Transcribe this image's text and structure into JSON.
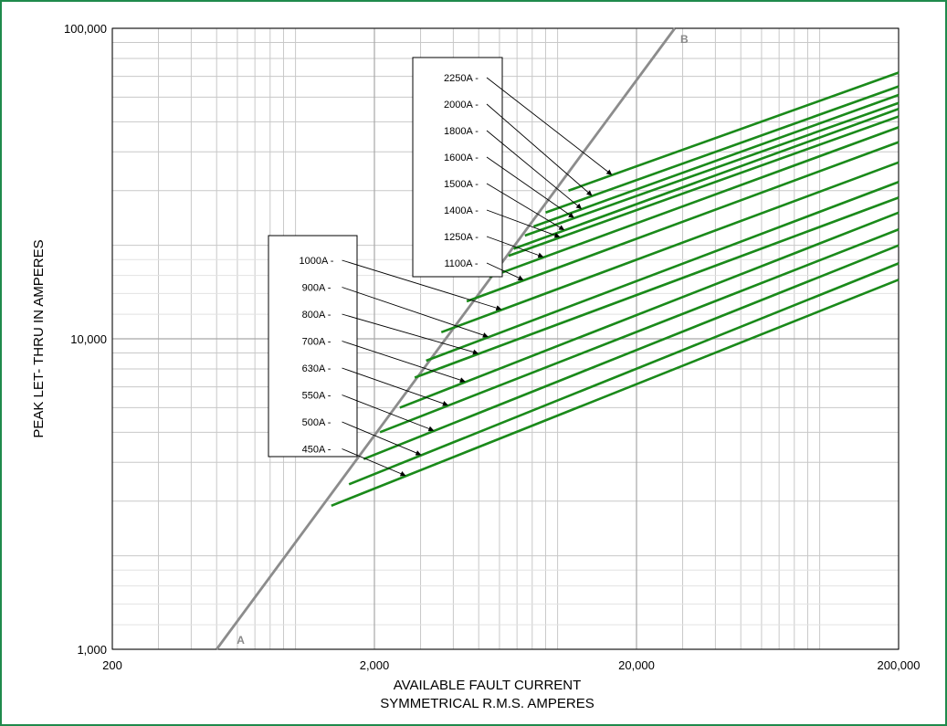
{
  "chart_data": {
    "type": "line",
    "xscale": "log",
    "yscale": "log",
    "xlim": [
      200,
      200000
    ],
    "ylim": [
      1000,
      100000
    ],
    "xlabel": [
      "AVAILABLE FAULT CURRENT",
      "SYMMETRICAL  R.M.S.  AMPERES"
    ],
    "ylabel": "PEAK LET- THRU IN AMPERES",
    "x_ticks": [
      {
        "value": 200,
        "label": "200"
      },
      {
        "value": 2000,
        "label": "2,000"
      },
      {
        "value": 20000,
        "label": "20,000"
      },
      {
        "value": 200000,
        "label": "200,000"
      }
    ],
    "y_ticks": [
      {
        "value": 1000,
        "label": "1,000"
      },
      {
        "value": 10000,
        "label": "10,000"
      },
      {
        "value": 100000,
        "label": "100,000"
      }
    ],
    "grid": true,
    "reference_line": {
      "start_label": "A",
      "end_label": "B",
      "color": "#8c8c8c",
      "points": [
        [
          500,
          1000
        ],
        [
          28000,
          100000
        ]
      ]
    },
    "series_color": "#1a8a1a",
    "series": [
      {
        "name": "450A",
        "points": [
          [
            1370,
            2900
          ],
          [
            200000,
            15500
          ]
        ]
      },
      {
        "name": "500A",
        "points": [
          [
            1600,
            3400
          ],
          [
            200000,
            17500
          ]
        ]
      },
      {
        "name": "550A",
        "points": [
          [
            1820,
            4100
          ],
          [
            200000,
            20000
          ]
        ]
      },
      {
        "name": "630A",
        "points": [
          [
            2100,
            5000
          ],
          [
            200000,
            22500
          ]
        ]
      },
      {
        "name": "700A",
        "points": [
          [
            2500,
            6000
          ],
          [
            200000,
            25500
          ]
        ]
      },
      {
        "name": "800A",
        "points": [
          [
            2850,
            7500
          ],
          [
            200000,
            28500
          ]
        ]
      },
      {
        "name": "900A",
        "points": [
          [
            3150,
            8500
          ],
          [
            200000,
            32000
          ]
        ]
      },
      {
        "name": "1000A",
        "points": [
          [
            3600,
            10500
          ],
          [
            200000,
            37000
          ]
        ]
      },
      {
        "name": "1100A",
        "points": [
          [
            4500,
            13200
          ],
          [
            200000,
            43000
          ]
        ]
      },
      {
        "name": "1250A",
        "points": [
          [
            5500,
            15800
          ],
          [
            200000,
            48000
          ]
        ]
      },
      {
        "name": "1400A",
        "points": [
          [
            6500,
            18500
          ],
          [
            200000,
            52000
          ]
        ]
      },
      {
        "name": "1500A",
        "points": [
          [
            6800,
            19500
          ],
          [
            200000,
            55000
          ]
        ]
      },
      {
        "name": "1600A",
        "points": [
          [
            7500,
            21500
          ],
          [
            200000,
            57500
          ]
        ]
      },
      {
        "name": "1800A",
        "points": [
          [
            8100,
            23000
          ],
          [
            200000,
            61000
          ]
        ]
      },
      {
        "name": "2000A",
        "points": [
          [
            9000,
            25500
          ],
          [
            200000,
            65000
          ]
        ]
      },
      {
        "name": "2250A",
        "points": [
          [
            11000,
            30000
          ],
          [
            200000,
            72000
          ]
        ]
      }
    ],
    "legend_boxes": [
      {
        "position": "upper",
        "labels": [
          "2250A -",
          "2000A -",
          "1800A -",
          "1600A -",
          "1500A -",
          "1400A -",
          "1250A -",
          "1100A -"
        ]
      },
      {
        "position": "left",
        "labels": [
          "1000A -",
          "900A -",
          "800A -",
          "700A -",
          "630A -",
          "550A -",
          "500A -",
          "450A -"
        ]
      }
    ]
  }
}
